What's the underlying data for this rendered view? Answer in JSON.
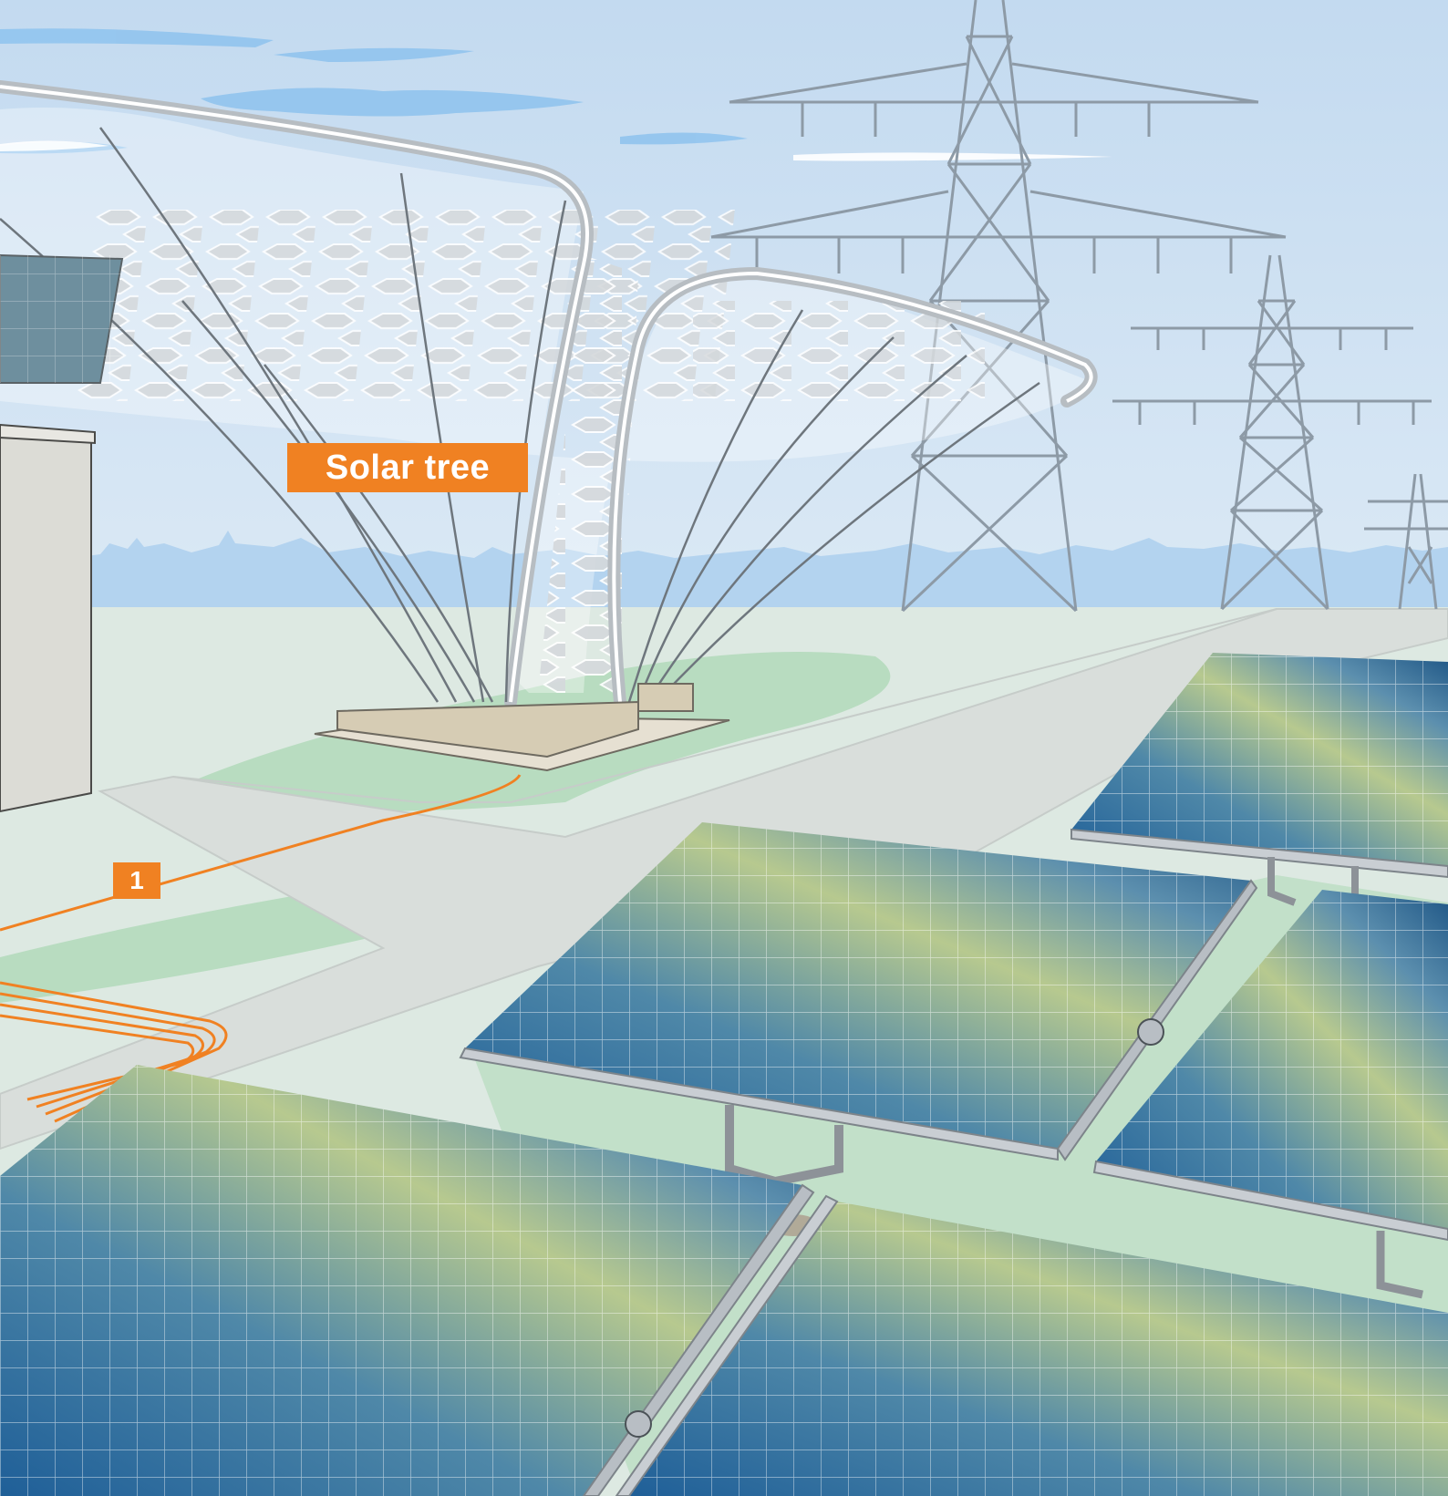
{
  "callouts": {
    "solar_tree": "Solar tree",
    "marker_1": "1"
  },
  "colors": {
    "sky": "#c7ddf2",
    "cloud": "#8ec3ee",
    "skyline": "#b3d3ef",
    "ground": "#dde9e2",
    "grass": "#b8dcc0",
    "path": "#d9dedb",
    "callout": "#f08122",
    "cable": "#f08122",
    "pylon": "#8d9aa6",
    "panel_blue": "#2a6aa0",
    "panel_yellow": "#b7c98f",
    "frame": "#c9ced3"
  },
  "icons": {
    "tree": "solar-tree-icon",
    "pylon": "power-pylon-icon",
    "panel": "solar-panel-icon"
  }
}
